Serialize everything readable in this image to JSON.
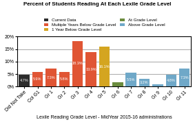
{
  "chart_data": {
    "type": "bar",
    "title": "Percent of Students Reading At Each Lexile Grade Level",
    "x_label": "Lexile Reading Grade Level - MidYear 2015-16 administrations",
    "categories": [
      "Did Not Take",
      "Col G1",
      "Gr 1",
      "Gr 2",
      "Gr 3",
      "Gr 4",
      "Gr 5",
      "Gr 6",
      "Gr 7",
      "Gr 8",
      "Gr 9",
      "Gr 10",
      "Gr 11"
    ],
    "series": [
      {
        "name": "Current Data",
        "color": "#2c2c2c",
        "values": [
          4.7,
          null,
          null,
          null,
          null,
          null,
          null,
          null,
          null,
          null,
          null,
          null,
          null
        ],
        "value_labels": [
          "4.7%",
          null,
          null,
          null,
          null,
          null,
          null,
          null,
          null,
          null,
          null,
          null,
          null
        ]
      },
      {
        "name": "Multiple Years Below Grade Level",
        "color": "#e05534",
        "values": [
          null,
          5.9,
          7.3,
          5.8,
          18.3,
          13.9,
          null,
          null,
          null,
          null,
          null,
          null,
          null
        ],
        "value_labels": [
          null,
          "5.9%",
          "7.3%",
          "5.8%",
          "18.3%",
          "13.9%",
          null,
          null,
          null,
          null,
          null,
          null,
          null
        ]
      },
      {
        "name": "1 Year Below Grade Level",
        "color": "#d4a520",
        "values": [
          null,
          null,
          null,
          null,
          null,
          null,
          16.1,
          null,
          null,
          null,
          null,
          null,
          null
        ],
        "value_labels": [
          null,
          null,
          null,
          null,
          null,
          null,
          "16.1%",
          null,
          null,
          null,
          null,
          null,
          null
        ]
      },
      {
        "name": "At Grade Level",
        "color": "#6b8c3e",
        "values": [
          null,
          null,
          null,
          null,
          null,
          null,
          null,
          1.7,
          null,
          null,
          null,
          null,
          null
        ],
        "value_labels": [
          null,
          null,
          null,
          null,
          null,
          null,
          null,
          null,
          null,
          null,
          null,
          null,
          null
        ]
      },
      {
        "name": "Above Grade Level",
        "color": "#6fa8c8",
        "values": [
          null,
          null,
          null,
          null,
          null,
          null,
          null,
          null,
          5.5,
          3.2,
          1.0,
          4.8,
          7.3
        ],
        "value_labels": [
          null,
          null,
          null,
          null,
          null,
          null,
          null,
          null,
          "5.5%",
          "3.2%",
          null,
          "4.8%",
          "7.3%"
        ]
      }
    ],
    "ylim": [
      0,
      20
    ],
    "yticks": [
      {
        "value": 0,
        "label": "0%"
      },
      {
        "value": 5,
        "label": "5%"
      },
      {
        "value": 10,
        "label": "10%"
      },
      {
        "value": 15,
        "label": "15%"
      },
      {
        "value": 20,
        "label": "20%"
      }
    ],
    "grid": true,
    "legend": "top",
    "data_labels": true
  }
}
